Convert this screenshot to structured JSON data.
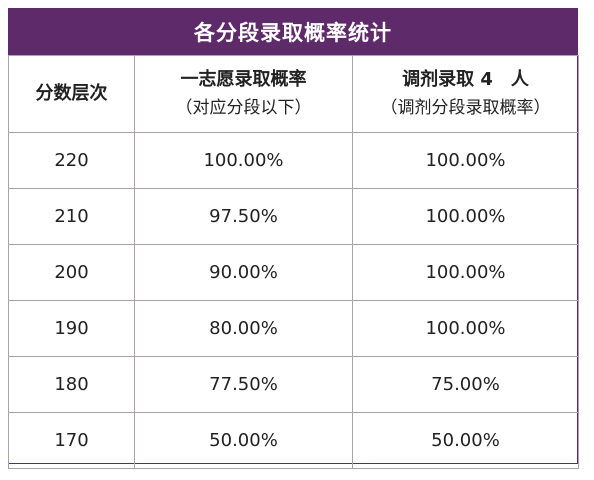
{
  "title": "各分段录取概率统计",
  "headers": {
    "col1": "分数层次",
    "col2_line1": "一志愿录取概率",
    "col2_line2": "（对应分段以下）",
    "col3_line1": "调剂录取 4　人",
    "col3_line2": "（调剂分段录取概率）"
  },
  "rows": [
    {
      "score": "220",
      "first_choice": "100.00%",
      "adjust": "100.00%"
    },
    {
      "score": "210",
      "first_choice": "97.50%",
      "adjust": "100.00%"
    },
    {
      "score": "200",
      "first_choice": "90.00%",
      "adjust": "100.00%"
    },
    {
      "score": "190",
      "first_choice": "80.00%",
      "adjust": "100.00%"
    },
    {
      "score": "180",
      "first_choice": "77.50%",
      "adjust": "75.00%"
    },
    {
      "score": "170",
      "first_choice": "50.00%",
      "adjust": "50.00%"
    }
  ],
  "colors": {
    "title_background": "#5e2a69",
    "title_text": "#ffffff",
    "grid_line": "#a9a1ad"
  }
}
